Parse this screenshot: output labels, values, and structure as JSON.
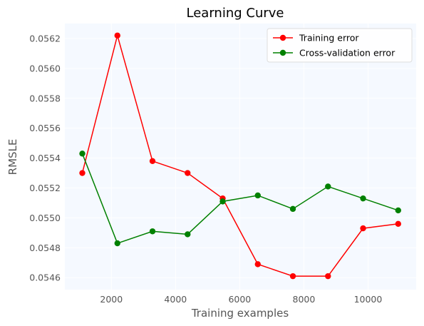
{
  "colors": {
    "plot_bg": "#f5f9ff",
    "grid": "#ffffff",
    "training": "#ff0000",
    "cv": "#008000"
  },
  "chart_data": {
    "type": "line",
    "title": "Learning Curve",
    "xlabel": "Training examples",
    "ylabel": "RMSLE",
    "xlim": [
      550,
      11500
    ],
    "ylim": [
      0.05452,
      0.0563
    ],
    "x_ticks": [
      2000,
      4000,
      6000,
      8000,
      10000
    ],
    "x_tick_labels": [
      "2000",
      "4000",
      "6000",
      "8000",
      "10000"
    ],
    "y_ticks": [
      0.0546,
      0.0548,
      0.055,
      0.0552,
      0.0554,
      0.0556,
      0.0558,
      0.056,
      0.0562
    ],
    "y_tick_labels": [
      "0.0546",
      "0.0548",
      "0.0550",
      "0.0552",
      "0.0554",
      "0.0556",
      "0.0558",
      "0.0560",
      "0.0562"
    ],
    "grid": true,
    "legend_position": "top-right",
    "x": [
      1094,
      2188,
      3282,
      4376,
      5470,
      6564,
      7658,
      8752,
      9846,
      10940
    ],
    "series": [
      {
        "name": "Training error",
        "color_key": "training",
        "values": [
          0.0553,
          0.05622,
          0.05538,
          0.0553,
          0.05513,
          0.05469,
          0.05461,
          0.05461,
          0.05493,
          0.05496
        ]
      },
      {
        "name": "Cross-validation error",
        "color_key": "cv",
        "values": [
          0.05543,
          0.05483,
          0.05491,
          0.05489,
          0.05511,
          0.05515,
          0.05506,
          0.05521,
          0.05513,
          0.05505
        ]
      }
    ]
  }
}
